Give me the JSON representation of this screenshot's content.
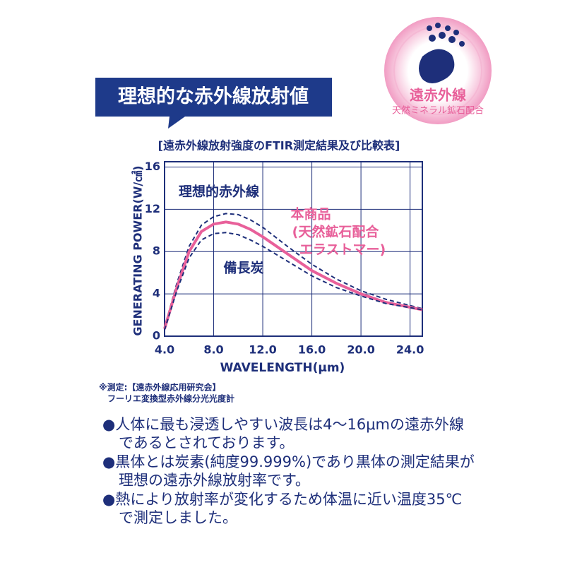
{
  "badge": {
    "title": "遠赤外線",
    "subtitle": "天然ミネラル鉱石配合"
  },
  "banner": "理想的な赤外線放射値",
  "chart_data": {
    "type": "line",
    "title": "[遠赤外線放射強度のFTIR測定結果及び比較表]",
    "xlabel": "WAVELENGTH(μm)",
    "ylabel": "GENERATING POWER(W/㎠)",
    "x": [
      4,
      5,
      6,
      7,
      8,
      9,
      10,
      11,
      12,
      14,
      16,
      18,
      20,
      22,
      25
    ],
    "series": [
      {
        "name": "理想的赤外線",
        "color": "#1e2f7a",
        "dashed": true,
        "values": [
          0.8,
          5,
          8.5,
          10.5,
          11.3,
          11.6,
          11.5,
          11.0,
          10.3,
          8.5,
          6.8,
          5.4,
          4.3,
          3.5,
          2.6
        ]
      },
      {
        "name": "本商品",
        "color": "#e8609a",
        "dashed": false,
        "values": [
          0.7,
          4.6,
          8,
          9.9,
          10.6,
          10.8,
          10.6,
          10.1,
          9.4,
          7.8,
          6.2,
          5.0,
          4.0,
          3.2,
          2.5
        ]
      },
      {
        "name": "備長炭",
        "color": "#1e2f7a",
        "dashed": true,
        "values": [
          0.6,
          4.3,
          7.4,
          9.1,
          9.7,
          9.8,
          9.6,
          9.1,
          8.5,
          7.1,
          5.7,
          4.6,
          3.8,
          3.1,
          2.5
        ]
      }
    ],
    "annotations": [
      "(天然鉱石配合",
      "エラストマー)"
    ],
    "xlim": [
      4,
      25
    ],
    "ylim": [
      0,
      16.5
    ],
    "xticks": [
      {
        "value": 4,
        "label": "4.0"
      },
      {
        "value": 8,
        "label": "8.0"
      },
      {
        "value": 12,
        "label": "12.0"
      },
      {
        "value": 16,
        "label": "16.0"
      },
      {
        "value": 20,
        "label": "20.0"
      },
      {
        "value": 24,
        "label": "24.0"
      }
    ],
    "yticks": [
      0,
      4,
      8,
      12,
      16
    ],
    "grid": true
  },
  "notes": [
    "※測定:【遠赤外線応用研究会】",
    "フーリエ変換型赤外線分光光度計"
  ],
  "bullets": [
    [
      "●人体に最も浸透しやすい波長は4〜16μmの遠赤外線",
      "であるとされております。"
    ],
    [
      "●黒体とは炭素(純度99.999%)であり黒体の測定結果が",
      "理想の遠赤外線放射率です。"
    ],
    [
      "●熱により放射率が変化するため体温に近い温度35℃",
      "で測定しました。"
    ]
  ]
}
